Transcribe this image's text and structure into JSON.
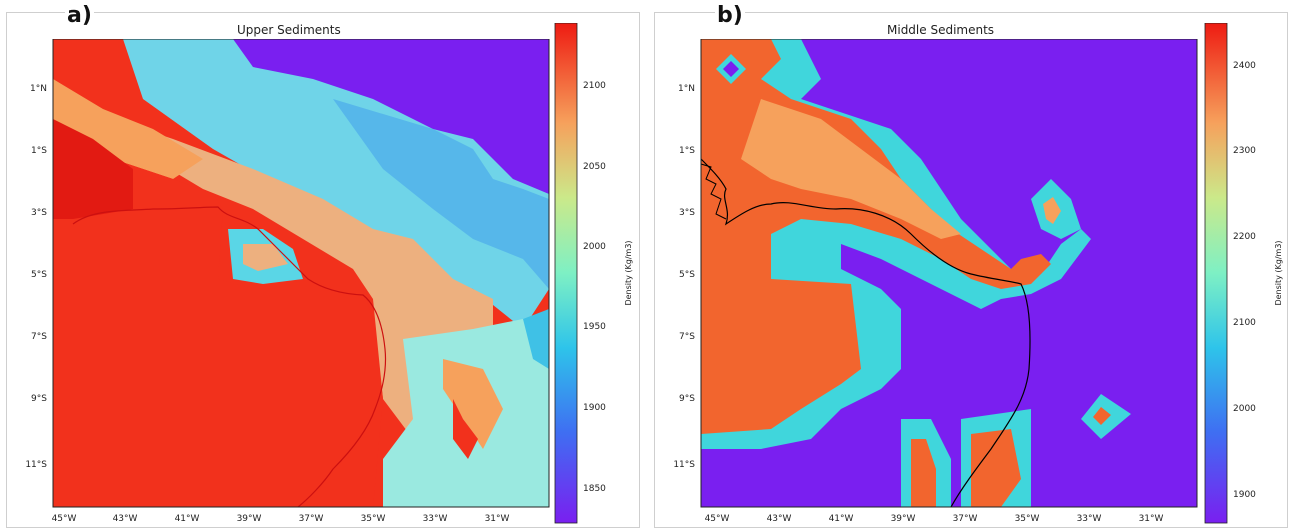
{
  "colors": {
    "red": "#f2311c",
    "orange": "#f6a15c",
    "tan": "#edb07f",
    "cyan": "#40d6dc",
    "lightcyan": "#9ae9e0",
    "blue": "#3fc1e6",
    "purple": "#7a1ff0",
    "coast_a": "#cc1010",
    "coast_b": "#000000"
  },
  "panels": [
    {
      "letter": "a)",
      "title": "Upper Sediments",
      "colorbar_label": "Density (Kg/m3)",
      "colorbar_ticks": [
        "2100",
        "2050",
        "2000",
        "1950",
        "1900",
        "1850"
      ],
      "colorbar_range": [
        1825,
        2125
      ],
      "lat_ticks": [
        "1°N",
        "1°S",
        "3°S",
        "5°S",
        "7°S",
        "9°S",
        "11°S"
      ],
      "lon_ticks": [
        "45°W",
        "43°W",
        "41°W",
        "39°W",
        "37°W",
        "35°W",
        "33°W",
        "31°W"
      ]
    },
    {
      "letter": "b)",
      "title": "Middle Sediments",
      "colorbar_label": "Density (Kg/m3)",
      "colorbar_ticks": [
        "2400",
        "2300",
        "2200",
        "2100",
        "2000",
        "1900"
      ],
      "colorbar_range": [
        1850,
        2430
      ],
      "lat_ticks": [
        "1°N",
        "1°S",
        "3°S",
        "5°S",
        "7°S",
        "9°S",
        "11°S"
      ],
      "lon_ticks": [
        "45°W",
        "43°W",
        "41°W",
        "39°W",
        "37°W",
        "35°W",
        "33°W",
        "31°W"
      ]
    }
  ]
}
